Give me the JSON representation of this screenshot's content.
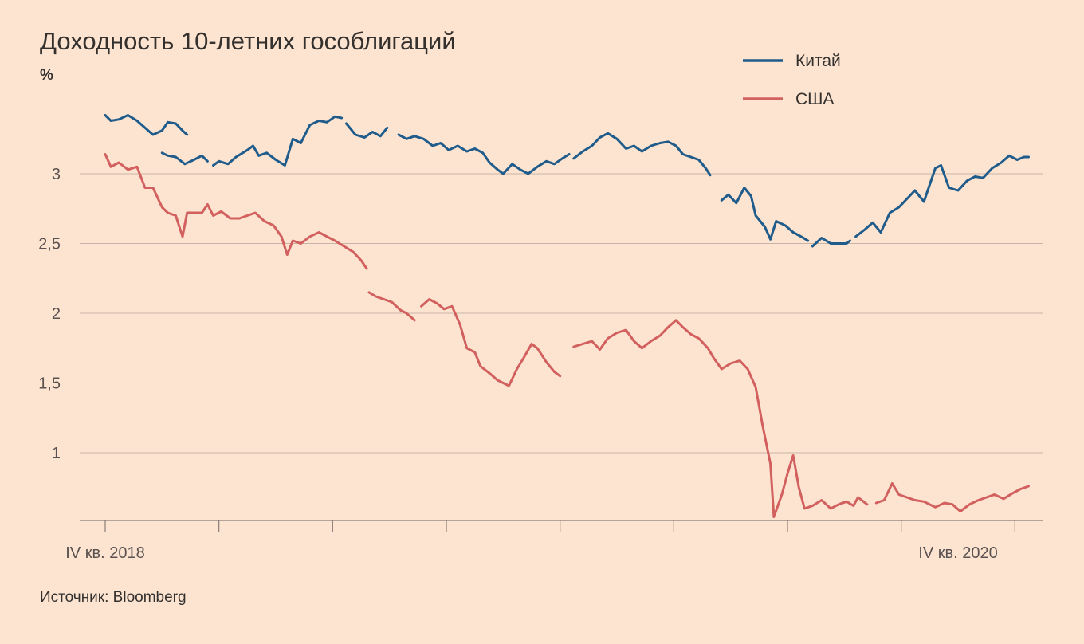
{
  "chart_data": {
    "type": "line",
    "title": "Доходность 10-летних гособлигаций",
    "unit": "%",
    "source": "Источник: Bloomberg",
    "x_tick_labels": [
      "IV кв. 2018",
      "IV кв. 2020"
    ],
    "y_ticks": [
      3,
      2.5,
      2,
      1.5,
      1
    ],
    "y_tick_labels": [
      "3",
      "2,5",
      "2",
      "1,5",
      "1"
    ],
    "ylim": [
      0.5,
      3.5
    ],
    "grid": true,
    "legend_position": "top-right",
    "x_unit": "quarters from IV кв. 2018",
    "x_range": [
      0,
      8.2
    ],
    "series": [
      {
        "name": "Китай",
        "color": "#1f5c8b",
        "points": [
          [
            0.0,
            3.42
          ],
          [
            0.05,
            3.38
          ],
          [
            0.12,
            3.39
          ],
          [
            0.2,
            3.42
          ],
          [
            0.28,
            3.38
          ],
          [
            0.35,
            3.33
          ],
          [
            0.42,
            3.28
          ],
          [
            0.5,
            3.31
          ],
          [
            0.55,
            3.37
          ],
          [
            0.62,
            3.36
          ],
          [
            0.68,
            3.31
          ],
          [
            0.72,
            3.28
          ],
          null,
          [
            0.5,
            3.15
          ],
          [
            0.55,
            3.13
          ],
          [
            0.62,
            3.12
          ],
          [
            0.7,
            3.07
          ],
          [
            0.78,
            3.1
          ],
          [
            0.85,
            3.13
          ],
          [
            0.9,
            3.09
          ],
          null,
          [
            0.95,
            3.06
          ],
          [
            1.0,
            3.09
          ],
          [
            1.08,
            3.07
          ],
          [
            1.15,
            3.12
          ],
          [
            1.25,
            3.17
          ],
          [
            1.3,
            3.2
          ],
          [
            1.35,
            3.13
          ],
          [
            1.42,
            3.15
          ],
          [
            1.5,
            3.1
          ],
          [
            1.58,
            3.06
          ],
          [
            1.65,
            3.25
          ],
          [
            1.72,
            3.22
          ],
          [
            1.8,
            3.35
          ],
          [
            1.88,
            3.38
          ],
          [
            1.95,
            3.37
          ],
          [
            2.02,
            3.41
          ],
          [
            2.08,
            3.4
          ],
          null,
          [
            2.12,
            3.36
          ],
          [
            2.2,
            3.28
          ],
          [
            2.28,
            3.26
          ],
          [
            2.35,
            3.3
          ],
          [
            2.42,
            3.27
          ],
          [
            2.48,
            3.33
          ],
          null,
          [
            2.58,
            3.28
          ],
          [
            2.65,
            3.25
          ],
          [
            2.72,
            3.27
          ],
          [
            2.8,
            3.25
          ],
          [
            2.88,
            3.2
          ],
          [
            2.95,
            3.22
          ],
          [
            3.02,
            3.17
          ],
          [
            3.1,
            3.2
          ],
          [
            3.18,
            3.16
          ],
          [
            3.25,
            3.18
          ],
          [
            3.32,
            3.15
          ],
          [
            3.38,
            3.08
          ],
          [
            3.45,
            3.03
          ],
          [
            3.5,
            3.0
          ],
          [
            3.58,
            3.07
          ],
          [
            3.65,
            3.03
          ],
          [
            3.72,
            3.0
          ],
          [
            3.8,
            3.05
          ],
          [
            3.88,
            3.09
          ],
          [
            3.95,
            3.07
          ],
          [
            4.02,
            3.11
          ],
          [
            4.08,
            3.14
          ],
          null,
          [
            4.12,
            3.11
          ],
          [
            4.2,
            3.16
          ],
          [
            4.28,
            3.2
          ],
          [
            4.35,
            3.26
          ],
          [
            4.42,
            3.29
          ],
          [
            4.5,
            3.25
          ],
          [
            4.58,
            3.18
          ],
          [
            4.65,
            3.2
          ],
          [
            4.72,
            3.16
          ],
          [
            4.8,
            3.2
          ],
          [
            4.88,
            3.22
          ],
          [
            4.95,
            3.23
          ],
          [
            5.02,
            3.2
          ],
          [
            5.08,
            3.14
          ],
          [
            5.15,
            3.12
          ],
          [
            5.22,
            3.1
          ],
          [
            5.28,
            3.04
          ],
          [
            5.32,
            2.99
          ],
          null,
          [
            5.42,
            2.81
          ],
          [
            5.48,
            2.85
          ],
          [
            5.55,
            2.79
          ],
          [
            5.62,
            2.9
          ],
          [
            5.68,
            2.84
          ],
          [
            5.72,
            2.7
          ],
          [
            5.8,
            2.62
          ],
          [
            5.85,
            2.53
          ],
          [
            5.9,
            2.66
          ],
          [
            5.98,
            2.63
          ],
          [
            6.05,
            2.58
          ],
          [
            6.12,
            2.55
          ],
          [
            6.18,
            2.52
          ],
          null,
          [
            6.22,
            2.48
          ],
          [
            6.3,
            2.54
          ],
          [
            6.38,
            2.5
          ],
          [
            6.45,
            2.5
          ],
          [
            6.52,
            2.5
          ],
          [
            6.55,
            2.52
          ],
          null,
          [
            6.6,
            2.55
          ],
          [
            6.68,
            2.6
          ],
          [
            6.75,
            2.65
          ],
          [
            6.82,
            2.58
          ],
          [
            6.9,
            2.72
          ],
          [
            6.98,
            2.76
          ],
          [
            7.05,
            2.82
          ],
          [
            7.12,
            2.88
          ],
          [
            7.2,
            2.8
          ],
          [
            7.25,
            2.92
          ],
          [
            7.3,
            3.04
          ],
          [
            7.35,
            3.06
          ],
          [
            7.42,
            2.9
          ],
          [
            7.5,
            2.88
          ],
          [
            7.58,
            2.95
          ],
          [
            7.65,
            2.98
          ],
          [
            7.72,
            2.97
          ],
          [
            7.8,
            3.04
          ],
          [
            7.88,
            3.08
          ],
          [
            7.95,
            3.13
          ],
          [
            8.02,
            3.1
          ],
          [
            8.08,
            3.12
          ],
          [
            8.12,
            3.12
          ]
        ]
      },
      {
        "name": "США",
        "color": "#d2605f",
        "points": [
          [
            0.0,
            3.14
          ],
          [
            0.05,
            3.05
          ],
          [
            0.12,
            3.08
          ],
          [
            0.2,
            3.03
          ],
          [
            0.28,
            3.05
          ],
          [
            0.35,
            2.9
          ],
          [
            0.42,
            2.9
          ],
          [
            0.5,
            2.76
          ],
          [
            0.55,
            2.72
          ],
          [
            0.62,
            2.7
          ],
          [
            0.68,
            2.55
          ],
          [
            0.72,
            2.72
          ],
          [
            0.78,
            2.72
          ],
          [
            0.85,
            2.72
          ],
          [
            0.9,
            2.78
          ],
          [
            0.95,
            2.7
          ],
          [
            1.02,
            2.73
          ],
          [
            1.1,
            2.68
          ],
          [
            1.18,
            2.68
          ],
          [
            1.25,
            2.7
          ],
          [
            1.32,
            2.72
          ],
          [
            1.4,
            2.66
          ],
          [
            1.48,
            2.63
          ],
          [
            1.55,
            2.55
          ],
          [
            1.6,
            2.42
          ],
          [
            1.65,
            2.52
          ],
          [
            1.72,
            2.5
          ],
          [
            1.8,
            2.55
          ],
          [
            1.88,
            2.58
          ],
          [
            1.95,
            2.55
          ],
          [
            2.02,
            2.52
          ],
          [
            2.1,
            2.48
          ],
          [
            2.18,
            2.44
          ],
          [
            2.25,
            2.38
          ],
          [
            2.3,
            2.32
          ],
          null,
          [
            2.32,
            2.15
          ],
          [
            2.38,
            2.12
          ],
          [
            2.45,
            2.1
          ],
          [
            2.52,
            2.08
          ],
          [
            2.6,
            2.02
          ],
          [
            2.65,
            2.0
          ],
          [
            2.72,
            1.95
          ],
          null,
          [
            2.78,
            2.05
          ],
          [
            2.85,
            2.1
          ],
          [
            2.92,
            2.07
          ],
          [
            2.98,
            2.03
          ],
          [
            3.05,
            2.05
          ],
          [
            3.12,
            1.92
          ],
          [
            3.18,
            1.75
          ],
          [
            3.25,
            1.72
          ],
          [
            3.3,
            1.62
          ],
          [
            3.38,
            1.57
          ],
          [
            3.45,
            1.52
          ],
          [
            3.5,
            1.5
          ],
          [
            3.55,
            1.48
          ],
          [
            3.62,
            1.6
          ],
          [
            3.68,
            1.68
          ],
          [
            3.75,
            1.78
          ],
          [
            3.8,
            1.75
          ],
          [
            3.88,
            1.65
          ],
          [
            3.95,
            1.58
          ],
          [
            4.0,
            1.55
          ],
          null,
          [
            4.12,
            1.76
          ],
          [
            4.2,
            1.78
          ],
          [
            4.28,
            1.8
          ],
          [
            4.35,
            1.74
          ],
          [
            4.42,
            1.82
          ],
          [
            4.5,
            1.86
          ],
          [
            4.58,
            1.88
          ],
          [
            4.65,
            1.8
          ],
          [
            4.72,
            1.75
          ],
          [
            4.8,
            1.8
          ],
          [
            4.88,
            1.84
          ],
          [
            4.95,
            1.9
          ],
          [
            5.02,
            1.95
          ],
          [
            5.08,
            1.9
          ],
          [
            5.15,
            1.85
          ],
          [
            5.22,
            1.82
          ],
          [
            5.3,
            1.75
          ],
          [
            5.35,
            1.68
          ],
          [
            5.42,
            1.6
          ],
          [
            5.5,
            1.64
          ],
          [
            5.58,
            1.66
          ],
          [
            5.65,
            1.6
          ],
          [
            5.72,
            1.47
          ],
          [
            5.78,
            1.2
          ],
          [
            5.85,
            0.92
          ],
          [
            5.88,
            0.54
          ],
          [
            5.95,
            0.7
          ],
          [
            6.0,
            0.85
          ],
          [
            6.05,
            0.98
          ],
          [
            6.1,
            0.75
          ],
          [
            6.15,
            0.6
          ],
          [
            6.22,
            0.62
          ],
          [
            6.3,
            0.66
          ],
          [
            6.38,
            0.6
          ],
          [
            6.45,
            0.63
          ],
          [
            6.52,
            0.65
          ],
          [
            6.58,
            0.62
          ],
          [
            6.62,
            0.68
          ],
          [
            6.7,
            0.63
          ],
          null,
          [
            6.78,
            0.64
          ],
          [
            6.85,
            0.66
          ],
          [
            6.92,
            0.78
          ],
          [
            6.98,
            0.7
          ],
          [
            7.05,
            0.68
          ],
          [
            7.12,
            0.66
          ],
          [
            7.2,
            0.65
          ],
          [
            7.3,
            0.61
          ],
          [
            7.38,
            0.64
          ],
          [
            7.45,
            0.63
          ],
          [
            7.52,
            0.58
          ],
          [
            7.6,
            0.63
          ],
          [
            7.68,
            0.66
          ],
          [
            7.75,
            0.68
          ],
          [
            7.82,
            0.7
          ],
          [
            7.9,
            0.67
          ],
          [
            7.98,
            0.71
          ],
          [
            8.05,
            0.74
          ],
          [
            8.12,
            0.76
          ]
        ]
      }
    ]
  }
}
